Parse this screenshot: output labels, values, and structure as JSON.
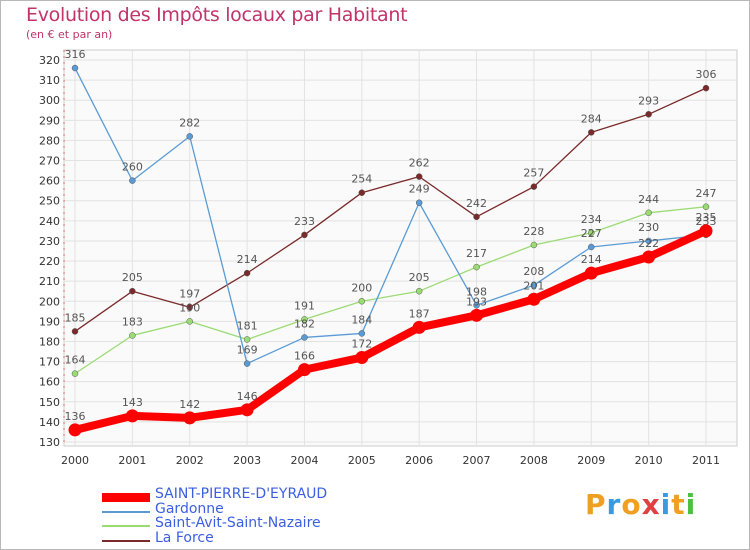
{
  "title": "Evolution des Impôts locaux par Habitant",
  "subtitle": "(en € et par an)",
  "logo": {
    "text": "Proxiti",
    "letter_colors": [
      "#f0a020",
      "#3b9be0",
      "#f0a020",
      "#e04040",
      "#3b9be0",
      "#f0a020",
      "#4cc040"
    ]
  },
  "chart_data": {
    "type": "line",
    "x": [
      "2000",
      "2001",
      "2002",
      "2003",
      "2004",
      "2005",
      "2006",
      "2007",
      "2008",
      "2009",
      "2010",
      "2011"
    ],
    "ylim": [
      130,
      320
    ],
    "yticks": [
      130,
      140,
      150,
      160,
      170,
      180,
      190,
      200,
      210,
      220,
      230,
      240,
      250,
      260,
      270,
      280,
      290,
      300,
      310,
      320
    ],
    "grid": true,
    "legend_position": "bottom-left",
    "series": [
      {
        "name": "SAINT-PIERRE-D'EYRAUD",
        "color": "#ff0000",
        "values": [
          136,
          143,
          142,
          146,
          166,
          172,
          187,
          193,
          201,
          214,
          222,
          235
        ]
      },
      {
        "name": "Gardonne",
        "color": "#5b9bd5",
        "values": [
          316,
          260,
          282,
          169,
          182,
          184,
          249,
          198,
          208,
          227,
          230,
          233
        ]
      },
      {
        "name": "Saint-Avit-Saint-Nazaire",
        "color": "#9bdb73",
        "values": [
          164,
          183,
          190,
          181,
          191,
          200,
          205,
          217,
          228,
          234,
          244,
          247
        ]
      },
      {
        "name": "La Force",
        "color": "#7a2a2a",
        "values": [
          185,
          205,
          197,
          214,
          233,
          254,
          262,
          242,
          257,
          284,
          293,
          306
        ]
      }
    ]
  }
}
